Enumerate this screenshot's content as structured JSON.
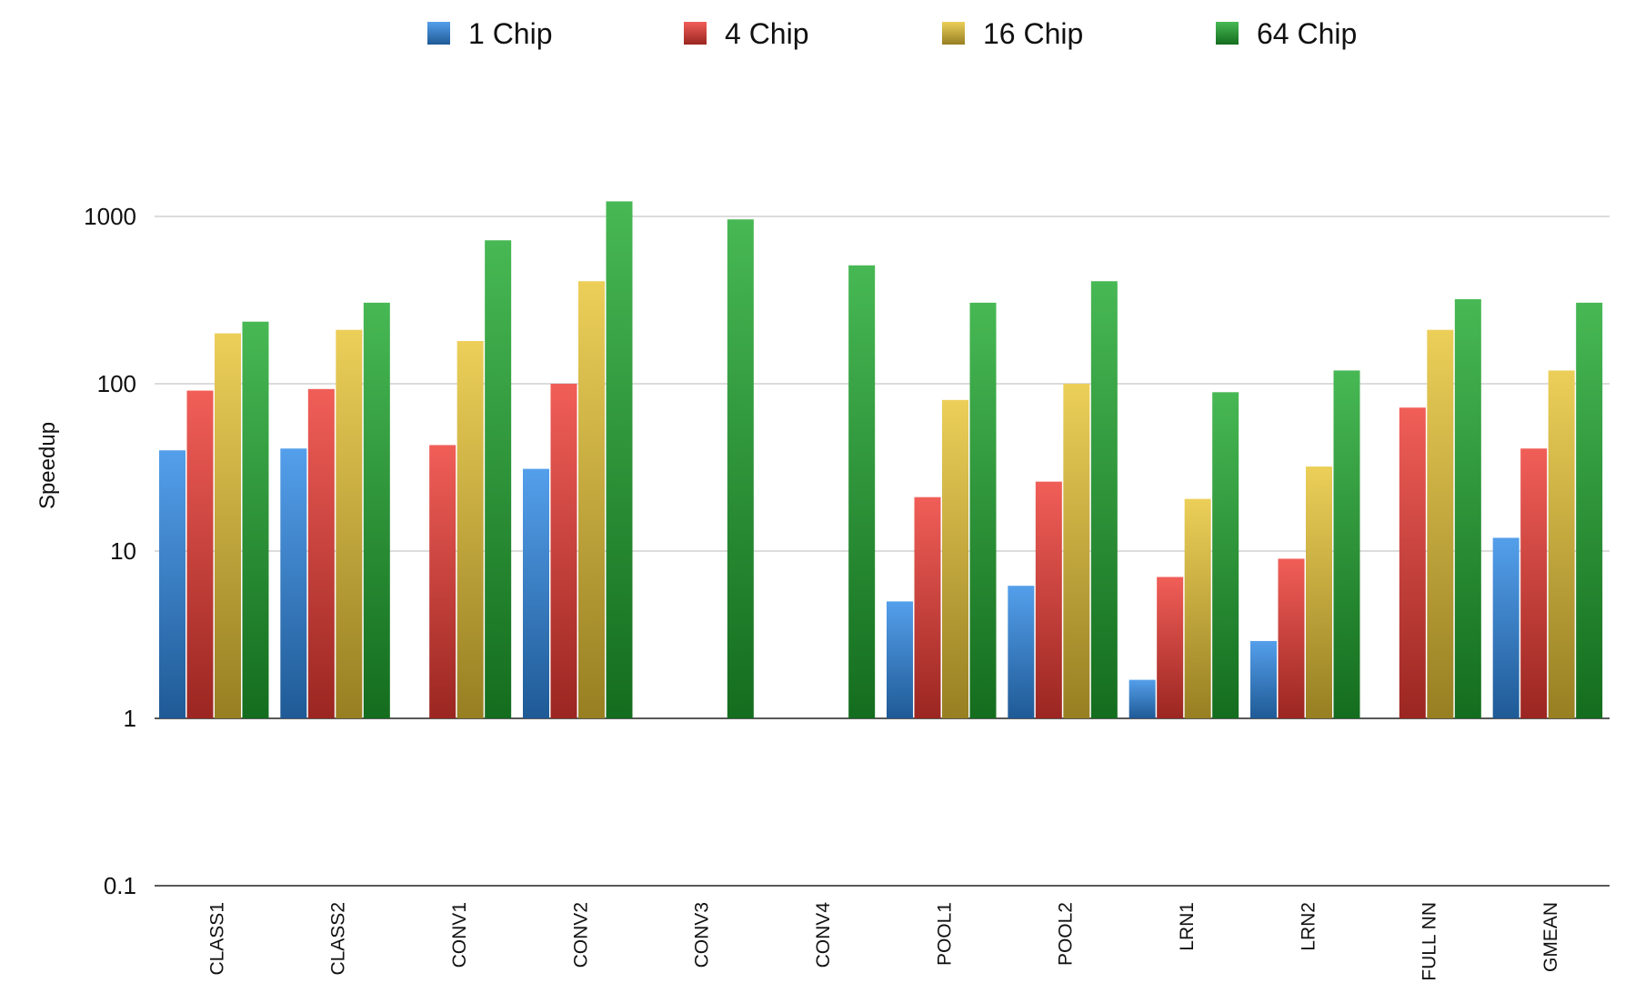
{
  "chart_data": {
    "type": "bar",
    "ylabel": "Speedup",
    "xlabel": "",
    "yscale": "log",
    "ylim": [
      0.1,
      1000
    ],
    "baseline": 1,
    "yticks": [
      0.1,
      1,
      10,
      100,
      1000
    ],
    "ytick_labels": [
      "0.1",
      "1",
      "10",
      "100",
      "1000"
    ],
    "grid": true,
    "legend_position": "top",
    "categories": [
      "CLASS1",
      "CLASS2",
      "CONV1",
      "CONV2",
      "CONV3",
      "CONV4",
      "POOL1",
      "POOL2",
      "LRN1",
      "LRN2",
      "FULL NN",
      "GMEAN"
    ],
    "series": [
      {
        "name": "1 Chip",
        "color": "#2f8ae6",
        "values": [
          40,
          41,
          null,
          31,
          null,
          null,
          5,
          6.2,
          1.7,
          2.9,
          null,
          12
        ]
      },
      {
        "name": "4 Chip",
        "color": "#ee3b33",
        "values": [
          91,
          93,
          43,
          100,
          null,
          null,
          21,
          26,
          7,
          9,
          72,
          41
        ]
      },
      {
        "name": "16 Chip",
        "color": "#e8c434",
        "values": [
          200,
          210,
          180,
          410,
          null,
          null,
          80,
          100,
          20.5,
          32,
          210,
          120
        ]
      },
      {
        "name": "64 Chip",
        "color": "#1ea82e",
        "values": [
          235,
          305,
          720,
          1230,
          960,
          510,
          305,
          410,
          89,
          120,
          320,
          305
        ]
      }
    ]
  }
}
